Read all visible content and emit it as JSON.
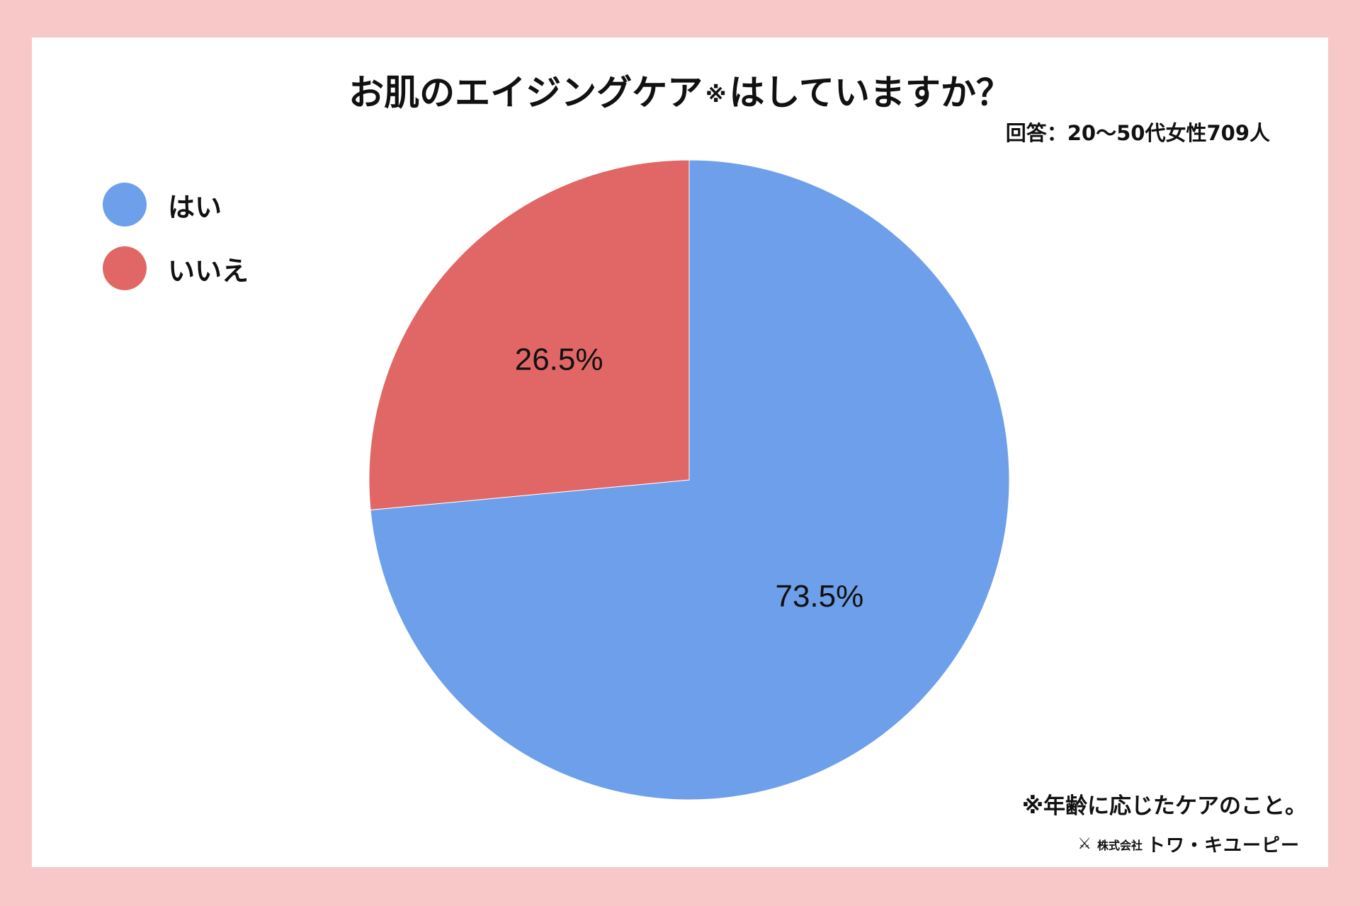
{
  "title": {
    "main": "お肌のエイジングケア",
    "mark": "※",
    "suffix": "はしていますか？"
  },
  "subtitle": "回答：20〜50代女性709人",
  "footnote": "※年齢に応じたケアのこと。",
  "logo": {
    "mark": "⚔",
    "prefix": "株式会社",
    "name": "トワ・キユーピー"
  },
  "chart_data": {
    "type": "pie",
    "categories": [
      "はい",
      "いいえ"
    ],
    "values": [
      73.5,
      26.5
    ],
    "labels": [
      "73.5%",
      "26.5%"
    ],
    "colors": [
      "#6e9fea",
      "#e06766"
    ],
    "legend_position": "top-left",
    "start": "top",
    "direction": "clockwise"
  }
}
